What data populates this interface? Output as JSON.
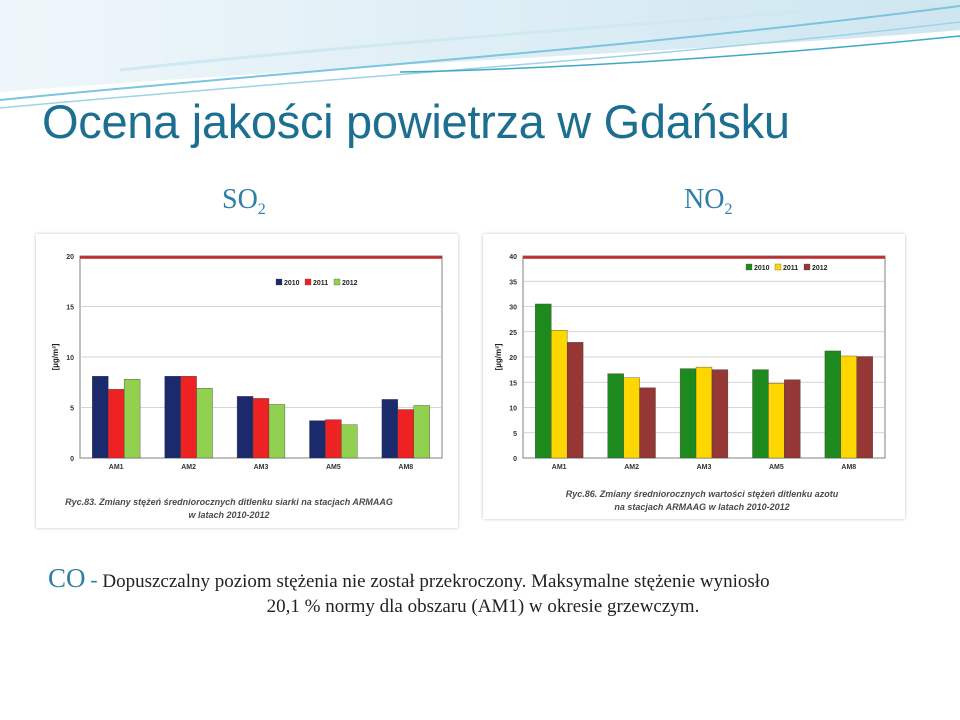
{
  "title": "Ocena jakości powietrza w Gdańsku",
  "labels": {
    "so2": {
      "main": "SO",
      "sub": "2"
    },
    "no2": {
      "main": "NO",
      "sub": "2"
    }
  },
  "colors": {
    "title": "#1d6f92",
    "accent": "#2e7fa6",
    "limit_line": "#c0282b",
    "so2_2010": "#1a2a6c",
    "so2_2011": "#ee2222",
    "so2_2012": "#92d050",
    "no2_2010": "#1e8a1e",
    "no2_2011": "#ffd700",
    "no2_2012": "#953735"
  },
  "chart_data": [
    {
      "type": "bar",
      "categories": [
        "AM1",
        "AM2",
        "AM3",
        "AM5",
        "AM8"
      ],
      "series": [
        {
          "name": "2010",
          "values": [
            8.1,
            8.1,
            6.1,
            3.7,
            5.8
          ]
        },
        {
          "name": "2011",
          "values": [
            6.8,
            8.1,
            5.9,
            3.8,
            4.8
          ]
        },
        {
          "name": "2012",
          "values": [
            7.8,
            6.9,
            5.3,
            3.3,
            5.2
          ]
        }
      ],
      "limit": 20,
      "ylabel": "[µg/m³]",
      "ylim": [
        0,
        20
      ],
      "yticks": [
        0,
        5,
        10,
        15,
        20
      ],
      "grid": true,
      "legend": "top-right",
      "caption_lines": [
        "Ryc.83. Zmiany stężeń średniorocznych ditlenku siarki na stacjach ARMAAG",
        "w latach 2010-2012"
      ]
    },
    {
      "type": "bar",
      "categories": [
        "AM1",
        "AM2",
        "AM3",
        "AM5",
        "AM8"
      ],
      "series": [
        {
          "name": "2010",
          "values": [
            30.5,
            16.7,
            17.7,
            17.5,
            21.2
          ]
        },
        {
          "name": "2011",
          "values": [
            25.3,
            15.9,
            18.0,
            14.8,
            20.2
          ]
        },
        {
          "name": "2012",
          "values": [
            22.9,
            13.9,
            17.5,
            15.5,
            20.1
          ]
        }
      ],
      "limit": 40,
      "ylabel": "[µg/m³]",
      "ylim": [
        0,
        40
      ],
      "yticks": [
        0,
        5,
        10,
        15,
        20,
        25,
        30,
        35,
        40
      ],
      "grid": true,
      "legend": "top-right",
      "caption_lines": [
        "Ryc.86. Zmiany średniorocznych wartości stężeń ditlenku azotu",
        "na stacjach ARMAAG w latach 2010-2012"
      ]
    }
  ],
  "co": {
    "label": "CO",
    "dash": "-",
    "line1": "Dopuszczalny poziom stężenia nie został przekroczony. Maksymalne stężenie wyniosło",
    "line2": "20,1 % normy dla obszaru (AM1) w okresie grzewczym."
  }
}
